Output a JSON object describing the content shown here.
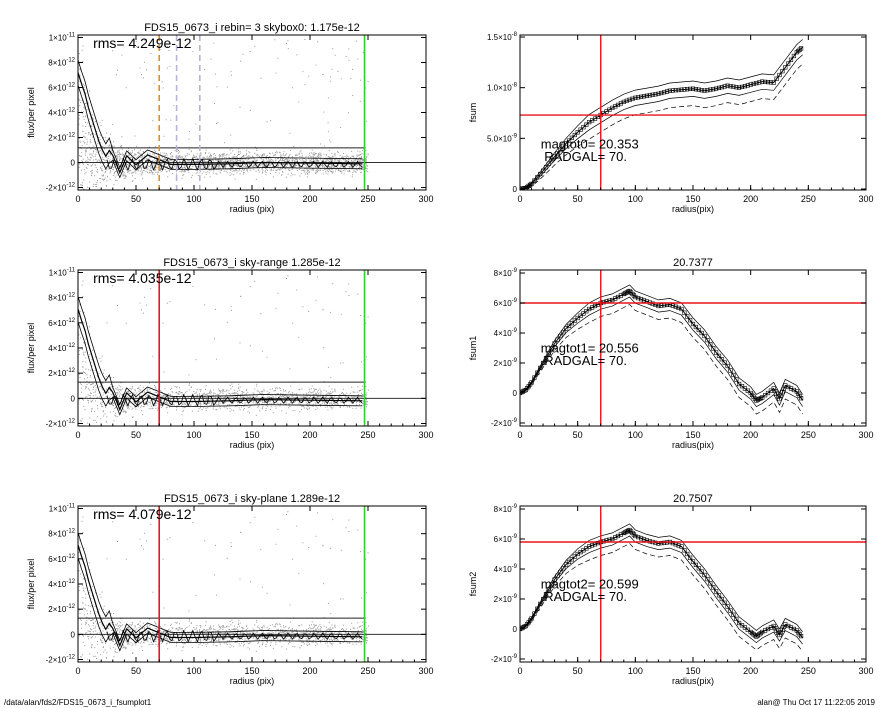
{
  "footer": {
    "path": "/data/alan/fds2/FDS15_0673_i_fsumplot1",
    "stamp": "alan@  Thu Oct 17 11:22:05 2019"
  },
  "colors": {
    "sky": "#000000",
    "red": "#e8141b",
    "green": "#2fd12f",
    "orange": "#f08a1c",
    "scatter": "#9b9b9b"
  },
  "chart_data": [
    {
      "type": "scatter",
      "title": "FDS15_0673_i rebin= 3    skybox0:  1.175e-12",
      "xlabel": "radius (pix)",
      "ylabel": "flux/per pixel",
      "xlim": [
        0,
        300
      ],
      "ylim": [
        -2.2e-12,
        1.02e-11
      ],
      "xticks": [
        0,
        50,
        100,
        150,
        200,
        250,
        300
      ],
      "yticks": [
        {
          "v": 1e-11,
          "base": "1×10",
          "exp": "-11"
        },
        {
          "v": 8e-12,
          "base": "8×10",
          "exp": "-12"
        },
        {
          "v": 6e-12,
          "base": "6×10",
          "exp": "-12"
        },
        {
          "v": 4e-12,
          "base": "4×10",
          "exp": "-12"
        },
        {
          "v": 2e-12,
          "base": "2×10",
          "exp": "-12"
        },
        {
          "v": 0,
          "base": "0",
          "exp": ""
        },
        {
          "v": -2e-12,
          "base": "-2×10",
          "exp": "-12"
        }
      ],
      "annotation": "rms= 4.249e-12",
      "skyline": 1.175e-12,
      "vlines": [
        {
          "x": 70,
          "color": "orange",
          "dash": true
        },
        {
          "x": 85,
          "color": "lavender",
          "dash": true
        },
        {
          "x": 105,
          "color": "lavender",
          "dash": true
        },
        {
          "x": 247,
          "color": "green",
          "dash": false
        }
      ],
      "profile": [
        [
          0,
          7.2e-12
        ],
        [
          3,
          6.3e-12
        ],
        [
          6,
          5.5e-12
        ],
        [
          9,
          4.4e-12
        ],
        [
          12,
          3.5e-12
        ],
        [
          15,
          2.6e-12
        ],
        [
          18,
          1.7e-12
        ],
        [
          21,
          1e-12
        ],
        [
          24,
          5e-13
        ],
        [
          27,
          3e-13
        ],
        [
          30,
          1e-13
        ],
        [
          36,
          -1e-13
        ],
        [
          42,
          0.0
        ],
        [
          50,
          -5e-14
        ],
        [
          60,
          -1e-13
        ],
        [
          80,
          -1.5e-13
        ],
        [
          100,
          -1.5e-13
        ],
        [
          130,
          -1e-13
        ],
        [
          160,
          0.0
        ],
        [
          200,
          -5e-14
        ],
        [
          245,
          -1e-13
        ]
      ]
    },
    {
      "type": "line",
      "title": "",
      "xlabel": "radius(pix)",
      "ylabel": "fsum",
      "xlim": [
        0,
        300
      ],
      "ylim": [
        -1e-10,
        1.52e-08
      ],
      "xticks": [
        0,
        50,
        100,
        150,
        200,
        250,
        300
      ],
      "yticks": [
        {
          "v": 1.5e-08,
          "base": "1.5×10",
          "exp": "-8"
        },
        {
          "v": 1e-08,
          "base": "1.0×10",
          "exp": "-8"
        },
        {
          "v": 5e-09,
          "base": "5.0×10",
          "exp": "-9"
        },
        {
          "v": 0,
          "base": "0",
          "exp": ""
        }
      ],
      "hline": 7.3e-09,
      "vline": 70,
      "mag_label": "magtot0=  20.353",
      "rad_label": "RADGAL=     70.",
      "series": [
        {
          "values": [
            [
              0,
              0
            ],
            [
              5,
              1e-10
            ],
            [
              10,
              5e-10
            ],
            [
              20,
              1.8e-09
            ],
            [
              30,
              3.2e-09
            ],
            [
              40,
              4.5e-09
            ],
            [
              50,
              5.6e-09
            ],
            [
              60,
              6.6e-09
            ],
            [
              70,
              7.3e-09
            ],
            [
              80,
              8e-09
            ],
            [
              90,
              8.6e-09
            ],
            [
              100,
              9e-09
            ],
            [
              110,
              9.2e-09
            ],
            [
              120,
              9.4e-09
            ],
            [
              130,
              9.7e-09
            ],
            [
              140,
              9.8e-09
            ],
            [
              150,
              9.9e-09
            ],
            [
              160,
              9.7e-09
            ],
            [
              170,
              9.9e-09
            ],
            [
              180,
              1.02e-08
            ],
            [
              190,
              1e-08
            ],
            [
              200,
              1.03e-08
            ],
            [
              210,
              1.06e-08
            ],
            [
              220,
              1.05e-08
            ],
            [
              230,
              1.2e-08
            ],
            [
              240,
              1.35e-08
            ],
            [
              245,
              1.4e-08
            ]
          ]
        }
      ]
    },
    {
      "type": "scatter",
      "title": "FDS15_0673_i sky-range  1.285e-12",
      "xlabel": "radius (pix)",
      "ylabel": "flux/per pixel",
      "xlim": [
        0,
        300
      ],
      "ylim": [
        -2.2e-12,
        1.02e-11
      ],
      "xticks": [
        0,
        50,
        100,
        150,
        200,
        250,
        300
      ],
      "yticks": [
        {
          "v": 1e-11,
          "base": "1×10",
          "exp": "-11"
        },
        {
          "v": 8e-12,
          "base": "8×10",
          "exp": "-12"
        },
        {
          "v": 6e-12,
          "base": "6×10",
          "exp": "-12"
        },
        {
          "v": 4e-12,
          "base": "4×10",
          "exp": "-12"
        },
        {
          "v": 2e-12,
          "base": "2×10",
          "exp": "-12"
        },
        {
          "v": 0,
          "base": "0",
          "exp": ""
        },
        {
          "v": -2e-12,
          "base": "-2×10",
          "exp": "-12"
        }
      ],
      "annotation": "rms= 4.035e-12",
      "skyline": 1.285e-12,
      "vlines": [
        {
          "x": 70,
          "color": "red",
          "dash": false
        },
        {
          "x": 247,
          "color": "green",
          "dash": false
        }
      ],
      "profile": [
        [
          0,
          7.1e-12
        ],
        [
          3,
          6.2e-12
        ],
        [
          6,
          5.4e-12
        ],
        [
          9,
          4.3e-12
        ],
        [
          12,
          3.4e-12
        ],
        [
          15,
          2.5e-12
        ],
        [
          18,
          1.6e-12
        ],
        [
          21,
          9e-13
        ],
        [
          24,
          4e-13
        ],
        [
          27,
          2e-13
        ],
        [
          30,
          0.0
        ],
        [
          36,
          -2e-13
        ],
        [
          42,
          -1e-13
        ],
        [
          50,
          -1.5e-13
        ],
        [
          60,
          -2e-13
        ],
        [
          80,
          -2.5e-13
        ],
        [
          100,
          -2.5e-13
        ],
        [
          130,
          -2e-13
        ],
        [
          160,
          -1e-13
        ],
        [
          200,
          -1.5e-13
        ],
        [
          245,
          -2e-13
        ]
      ]
    },
    {
      "type": "line",
      "title": "20.7377",
      "xlabel": "radius(pix)",
      "ylabel": "fsum1",
      "xlim": [
        0,
        300
      ],
      "ylim": [
        -2.2e-09,
        8.2e-09
      ],
      "xticks": [
        0,
        50,
        100,
        150,
        200,
        250,
        300
      ],
      "yticks": [
        {
          "v": 8e-09,
          "base": "8×10",
          "exp": "-9"
        },
        {
          "v": 6e-09,
          "base": "6×10",
          "exp": "-9"
        },
        {
          "v": 4e-09,
          "base": "4×10",
          "exp": "-9"
        },
        {
          "v": 2e-09,
          "base": "2×10",
          "exp": "-9"
        },
        {
          "v": 0,
          "base": "0",
          "exp": ""
        },
        {
          "v": -2e-09,
          "base": "-2×10",
          "exp": "-9"
        }
      ],
      "hline": 6e-09,
      "vline": 70,
      "mag_label": "magtot1=  20.556",
      "rad_label": "RADGAL=     70.",
      "series": [
        {
          "values": [
            [
              0,
              0
            ],
            [
              5,
              2e-10
            ],
            [
              10,
              7e-10
            ],
            [
              20,
              2e-09
            ],
            [
              30,
              3.3e-09
            ],
            [
              40,
              4.3e-09
            ],
            [
              50,
              5e-09
            ],
            [
              60,
              5.6e-09
            ],
            [
              70,
              6e-09
            ],
            [
              80,
              6.2e-09
            ],
            [
              90,
              6.6e-09
            ],
            [
              95,
              6.8e-09
            ],
            [
              100,
              6.4e-09
            ],
            [
              110,
              6.1e-09
            ],
            [
              120,
              5.8e-09
            ],
            [
              130,
              5.9e-09
            ],
            [
              140,
              5.6e-09
            ],
            [
              150,
              4.6e-09
            ],
            [
              160,
              3.8e-09
            ],
            [
              170,
              2.7e-09
            ],
            [
              180,
              1.8e-09
            ],
            [
              190,
              6e-10
            ],
            [
              200,
              0.0
            ],
            [
              205,
              -5e-10
            ],
            [
              210,
              -3e-10
            ],
            [
              220,
              3e-10
            ],
            [
              225,
              -4e-10
            ],
            [
              230,
              5e-10
            ],
            [
              240,
              1e-10
            ],
            [
              245,
              -5e-10
            ]
          ]
        }
      ]
    },
    {
      "type": "scatter",
      "title": "FDS15_0673_i sky-plane  1.289e-12",
      "xlabel": "radius (pix)",
      "ylabel": "flux/per pixel",
      "xlim": [
        0,
        300
      ],
      "ylim": [
        -2.2e-12,
        1.02e-11
      ],
      "xticks": [
        0,
        50,
        100,
        150,
        200,
        250,
        300
      ],
      "yticks": [
        {
          "v": 1e-11,
          "base": "1×10",
          "exp": "-11"
        },
        {
          "v": 8e-12,
          "base": "8×10",
          "exp": "-12"
        },
        {
          "v": 6e-12,
          "base": "6×10",
          "exp": "-12"
        },
        {
          "v": 4e-12,
          "base": "4×10",
          "exp": "-12"
        },
        {
          "v": 2e-12,
          "base": "2×10",
          "exp": "-12"
        },
        {
          "v": 0,
          "base": "0",
          "exp": ""
        },
        {
          "v": -2e-12,
          "base": "-2×10",
          "exp": "-12"
        }
      ],
      "annotation": "rms= 4.079e-12",
      "skyline": 1.289e-12,
      "vlines": [
        {
          "x": 70,
          "color": "red",
          "dash": false
        },
        {
          "x": 247,
          "color": "green",
          "dash": false
        }
      ],
      "profile": [
        [
          0,
          7.1e-12
        ],
        [
          3,
          6.2e-12
        ],
        [
          6,
          5.4e-12
        ],
        [
          9,
          4.3e-12
        ],
        [
          12,
          3.4e-12
        ],
        [
          15,
          2.5e-12
        ],
        [
          18,
          1.6e-12
        ],
        [
          21,
          9e-13
        ],
        [
          24,
          4e-13
        ],
        [
          27,
          2e-13
        ],
        [
          30,
          0.0
        ],
        [
          36,
          -2e-13
        ],
        [
          42,
          -1e-13
        ],
        [
          50,
          -1.5e-13
        ],
        [
          60,
          -2e-13
        ],
        [
          80,
          -2.5e-13
        ],
        [
          100,
          -2.5e-13
        ],
        [
          130,
          -2e-13
        ],
        [
          160,
          -1e-13
        ],
        [
          200,
          -1.5e-13
        ],
        [
          245,
          -2e-13
        ]
      ]
    },
    {
      "type": "line",
      "title": "20.7507",
      "xlabel": "radius(pix)",
      "ylabel": "fsum2",
      "xlim": [
        0,
        300
      ],
      "ylim": [
        -2.2e-09,
        8.2e-09
      ],
      "xticks": [
        0,
        50,
        100,
        150,
        200,
        250,
        300
      ],
      "yticks": [
        {
          "v": 8e-09,
          "base": "8×10",
          "exp": "-9"
        },
        {
          "v": 6e-09,
          "base": "6×10",
          "exp": "-9"
        },
        {
          "v": 4e-09,
          "base": "4×10",
          "exp": "-9"
        },
        {
          "v": 2e-09,
          "base": "2×10",
          "exp": "-9"
        },
        {
          "v": 0,
          "base": "0",
          "exp": ""
        },
        {
          "v": -2e-09,
          "base": "-2×10",
          "exp": "-9"
        }
      ],
      "hline": 5.8e-09,
      "vline": 70,
      "mag_label": "magtot2=  20.599",
      "rad_label": "RADGAL=     70.",
      "series": [
        {
          "values": [
            [
              0,
              0
            ],
            [
              5,
              2e-10
            ],
            [
              10,
              7e-10
            ],
            [
              20,
              2e-09
            ],
            [
              30,
              3.3e-09
            ],
            [
              40,
              4.3e-09
            ],
            [
              50,
              5e-09
            ],
            [
              60,
              5.5e-09
            ],
            [
              70,
              5.8e-09
            ],
            [
              80,
              6e-09
            ],
            [
              90,
              6.4e-09
            ],
            [
              95,
              6.6e-09
            ],
            [
              100,
              6.2e-09
            ],
            [
              110,
              5.9e-09
            ],
            [
              120,
              5.7e-09
            ],
            [
              130,
              5.8e-09
            ],
            [
              140,
              5.5e-09
            ],
            [
              150,
              4.5e-09
            ],
            [
              160,
              3.6e-09
            ],
            [
              170,
              2.5e-09
            ],
            [
              180,
              1.5e-09
            ],
            [
              190,
              4e-10
            ],
            [
              200,
              -2e-10
            ],
            [
              205,
              -5e-10
            ],
            [
              210,
              -2e-10
            ],
            [
              220,
              2e-10
            ],
            [
              225,
              -4e-10
            ],
            [
              230,
              3e-10
            ],
            [
              240,
              -1e-10
            ],
            [
              245,
              -6e-10
            ]
          ]
        }
      ]
    }
  ]
}
